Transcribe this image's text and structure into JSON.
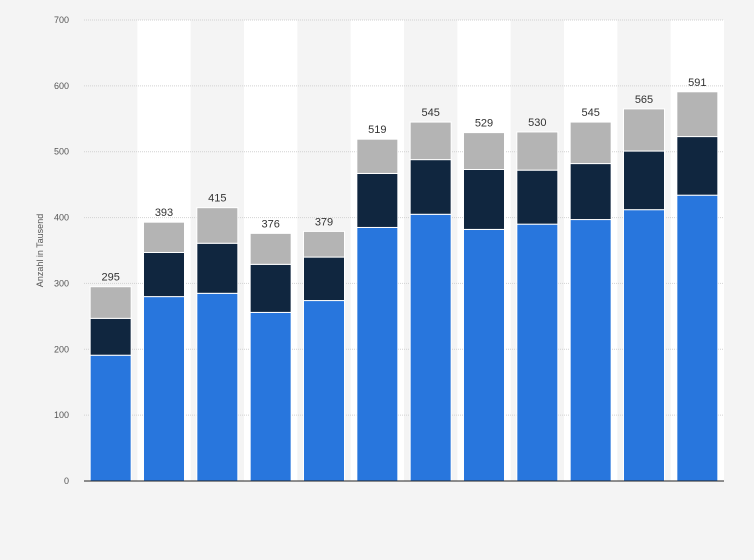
{
  "chart_data": {
    "type": "bar",
    "stacked": true,
    "title": "",
    "xlabel": "",
    "ylabel": "Anzahl in Tausend",
    "ylim": [
      0,
      700
    ],
    "yticks": [
      0,
      100,
      200,
      300,
      400,
      500,
      600,
      700
    ],
    "grid": true,
    "categories": [
      "",
      "",
      "",
      "",
      "",
      "",
      "",
      "",
      "",
      "",
      "",
      ""
    ],
    "series": [
      {
        "values": [
          191,
          280,
          285,
          256,
          274,
          385,
          405,
          382,
          390,
          397,
          412,
          434
        ]
      },
      {
        "values": [
          56,
          67,
          76,
          73,
          66,
          82,
          83,
          91,
          82,
          85,
          89,
          89
        ]
      },
      {
        "values": [
          48,
          46,
          54,
          47,
          39,
          52,
          57,
          56,
          58,
          63,
          64,
          68
        ]
      }
    ],
    "totals": [
      "295",
      "393",
      "415",
      "376",
      "379",
      "519",
      "545",
      "529",
      "530",
      "545",
      "565",
      "591"
    ],
    "colors": {
      "series": [
        "#2876dd",
        "#10263f",
        "#b4b4b4"
      ],
      "grid": "#d2d2d2",
      "band": "#ffffff",
      "background": "#f4f4f4",
      "axis": "#222222"
    }
  }
}
